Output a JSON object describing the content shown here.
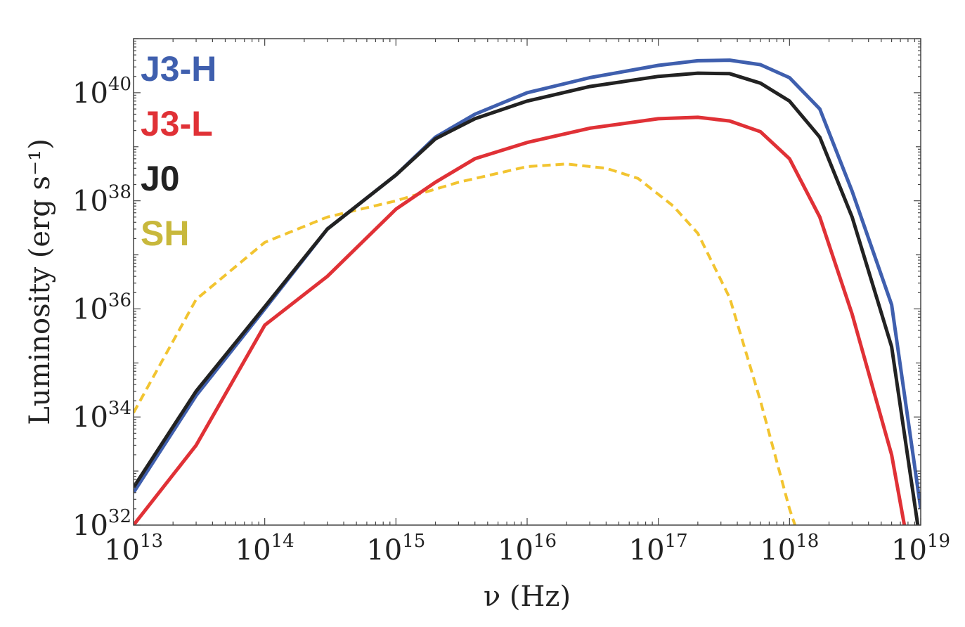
{
  "chart_data": {
    "type": "line",
    "xlabel": "ν (Hz)",
    "ylabel": "Luminosity (erg s⁻¹)",
    "x_scale": "log",
    "y_scale": "log",
    "xlim": [
      10000000000000.0,
      1e+19
    ],
    "ylim": [
      1e+32,
      1e+41
    ],
    "grid": false,
    "legend_placement": "top-left",
    "x_ticks": [
      {
        "base": "10",
        "exp": "13",
        "value": 10000000000000.0
      },
      {
        "base": "10",
        "exp": "14",
        "value": 100000000000000.0
      },
      {
        "base": "10",
        "exp": "15",
        "value": 1000000000000000.0
      },
      {
        "base": "10",
        "exp": "16",
        "value": 1e+16
      },
      {
        "base": "10",
        "exp": "17",
        "value": 1e+17
      },
      {
        "base": "10",
        "exp": "18",
        "value": 1e+18
      },
      {
        "base": "10",
        "exp": "19",
        "value": 1e+19
      }
    ],
    "y_ticks": [
      {
        "base": "10",
        "exp": "32",
        "value": 1e+32
      },
      {
        "base": "10",
        "exp": "34",
        "value": 1e+34
      },
      {
        "base": "10",
        "exp": "36",
        "value": 1e+36
      },
      {
        "base": "10",
        "exp": "38",
        "value": 1e+38
      },
      {
        "base": "10",
        "exp": "40",
        "value": 1e+40
      }
    ],
    "series": [
      {
        "name": "J3-H",
        "color": "#3f5fae",
        "dash": false,
        "x": [
          10000000000000.0,
          30000000000000.0,
          100000000000000.0,
          300000000000000.0,
          1000000000000000.0,
          2000000000000000.0,
          4000000000000000.0,
          1e+16,
          3e+16,
          1e+17,
          2e+17,
          3.5e+17,
          6e+17,
          1e+18,
          1.7e+18,
          3e+18,
          6e+18,
          1e+19
        ],
        "y": [
          4e+32,
          2.5e+34,
          1e+36,
          3e+37,
          3e+38,
          1.5e+39,
          4e+39,
          1e+40,
          1.9e+40,
          3.2e+40,
          3.9e+40,
          4e+40,
          3.3e+40,
          1.9e+40,
          5e+39,
          1.5e+38,
          1.2e+36,
          2e+32
        ]
      },
      {
        "name": "J3-L",
        "color": "#e03136",
        "dash": false,
        "x": [
          10000000000000.0,
          30000000000000.0,
          100000000000000.0,
          300000000000000.0,
          1000000000000000.0,
          2000000000000000.0,
          4000000000000000.0,
          1e+16,
          3e+16,
          1e+17,
          2e+17,
          3.5e+17,
          6e+17,
          1e+18,
          1.7e+18,
          3e+18,
          6e+18,
          7.5e+18
        ],
        "y": [
          1e+32,
          3e+33,
          5e+35,
          4e+36,
          7e+37,
          2.2e+38,
          6e+38,
          1.2e+39,
          2.2e+39,
          3.3e+39,
          3.5e+39,
          3e+39,
          1.9e+39,
          6e+38,
          5e+37,
          8e+35,
          2e+33,
          1e+32
        ]
      },
      {
        "name": "J0",
        "color": "#222222",
        "dash": false,
        "x": [
          10000000000000.0,
          30000000000000.0,
          100000000000000.0,
          300000000000000.0,
          1000000000000000.0,
          2000000000000000.0,
          4000000000000000.0,
          1e+16,
          3e+16,
          1e+17,
          2e+17,
          3.5e+17,
          6e+17,
          1e+18,
          1.7e+18,
          3e+18,
          6e+18,
          9.5e+18
        ],
        "y": [
          5e+32,
          3e+34,
          1.1e+36,
          3e+37,
          3e+38,
          1.4e+39,
          3.3e+39,
          7e+39,
          1.3e+40,
          2e+40,
          2.3e+40,
          2.25e+40,
          1.5e+40,
          7e+39,
          1.5e+39,
          5e+37,
          2e+35,
          1e+32
        ]
      },
      {
        "name": "SH",
        "color": "#f2c430",
        "dash": true,
        "x": [
          10000000000000.0,
          30000000000000.0,
          100000000000000.0,
          300000000000000.0,
          1000000000000000.0,
          3000000000000000.0,
          1e+16,
          2e+16,
          4e+16,
          7e+16,
          1.3e+17,
          2e+17,
          3.5e+17,
          6e+17,
          1e+18,
          1.1e+18
        ],
        "y": [
          1.2e+34,
          1.5e+36,
          1.7e+37,
          5e+37,
          1e+38,
          2.2e+38,
          4.3e+38,
          4.8e+38,
          4e+38,
          2.6e+38,
          8e+37,
          2.5e+37,
          1.6e+36,
          2e+34,
          2e+32,
          1e+32
        ]
      }
    ]
  }
}
